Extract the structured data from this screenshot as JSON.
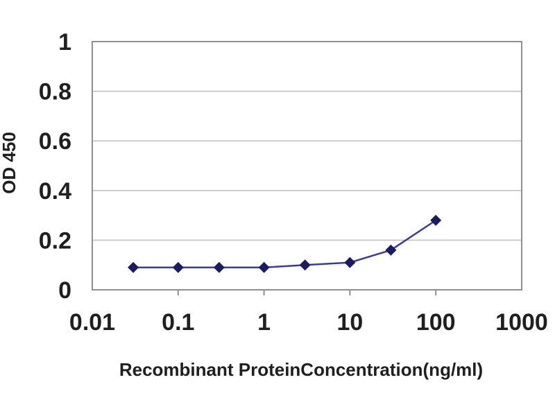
{
  "chart_data": {
    "type": "line",
    "title": "",
    "xlabel": "Recombinant ProteinConcentration(ng/ml)",
    "ylabel": "OD 450",
    "x_scale": "log",
    "xlim": [
      0.01,
      1000
    ],
    "x_ticks": [
      0.01,
      0.1,
      1,
      10,
      100,
      1000
    ],
    "x_tick_labels": [
      "0.01",
      "0.1",
      "1",
      "10",
      "100",
      "1000"
    ],
    "ylim": [
      0,
      1
    ],
    "y_ticks": [
      0,
      0.2,
      0.4,
      0.6,
      0.8,
      1
    ],
    "y_tick_labels": [
      "0",
      "0.2",
      "0.4",
      "0.6",
      "0.8",
      "1"
    ],
    "grid": "horizontal",
    "legend": "none",
    "series": [
      {
        "name": "OD 450",
        "marker": "diamond",
        "x": [
          0.03,
          0.1,
          0.3,
          1,
          3,
          10,
          30,
          100
        ],
        "y": [
          0.09,
          0.09,
          0.09,
          0.09,
          0.1,
          0.11,
          0.16,
          0.28
        ]
      }
    ],
    "colors": {
      "line": "#3c3c90",
      "marker": "#1b1b62",
      "gridline": "#bfbfbf",
      "axis_border": "#8f8f8f",
      "tick_mark": "#8f8f8f",
      "text": "#1f1f1f",
      "background": "#ffffff"
    }
  }
}
